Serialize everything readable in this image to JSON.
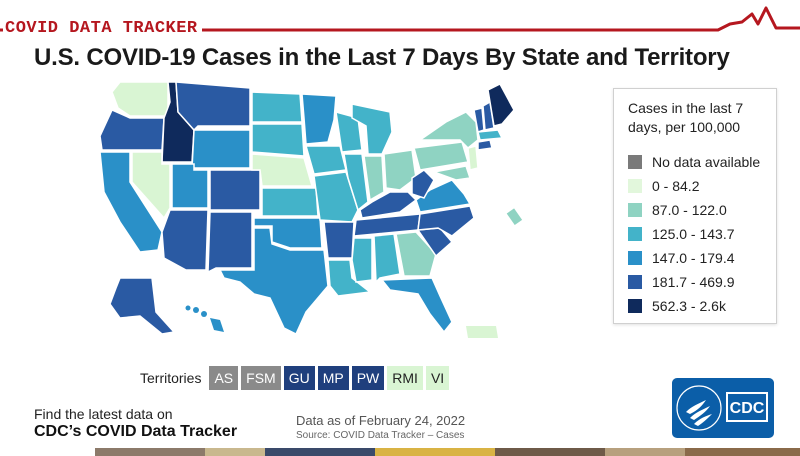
{
  "banner": {
    "label": "COVID DATA TRACKER"
  },
  "title": "U.S. COVID-19 Cases in the Last 7 Days By State and Territory",
  "legend": {
    "title": "Cases in the last 7 days, per 100,000",
    "items": [
      {
        "label": "No data available",
        "color": "#7a7a7a"
      },
      {
        "label": "0 - 84.2",
        "color": "#e2f7dc"
      },
      {
        "label": "87.0 - 122.0",
        "color": "#8fd3c2"
      },
      {
        "label": "125.0 - 143.7",
        "color": "#43b3c9"
      },
      {
        "label": "147.0 - 179.4",
        "color": "#2a90c8"
      },
      {
        "label": "181.7 - 469.9",
        "color": "#2a5aa3"
      },
      {
        "label": "562.3 - 2.6k",
        "color": "#0f2a5c"
      }
    ]
  },
  "territories": {
    "label": "Territories",
    "items": [
      {
        "code": "AS",
        "color": "#8a8a8a",
        "text_color": "#ffffff"
      },
      {
        "code": "FSM",
        "color": "#8a8a8a",
        "text_color": "#ffffff"
      },
      {
        "code": "GU",
        "color": "#1f3f7d",
        "text_color": "#ffffff"
      },
      {
        "code": "MP",
        "color": "#1f3f7d",
        "text_color": "#ffffff"
      },
      {
        "code": "PW",
        "color": "#1f3f7d",
        "text_color": "#ffffff"
      },
      {
        "code": "RMI",
        "color": "#d9f5d3",
        "text_color": "#222222"
      },
      {
        "code": "VI",
        "color": "#d9f5d3",
        "text_color": "#222222"
      }
    ]
  },
  "footer": {
    "find_text": "Find the latest data on",
    "link_text": "CDC’s COVID Data Tracker",
    "data_asof": "Data as of February 24, 2022",
    "source": "Source: COVID Data Tracker – Cases"
  },
  "logo": {
    "text": "CDC"
  },
  "colors": {
    "brand_red": "#b5171f",
    "cdc_blue": "#0b5ea8"
  }
}
